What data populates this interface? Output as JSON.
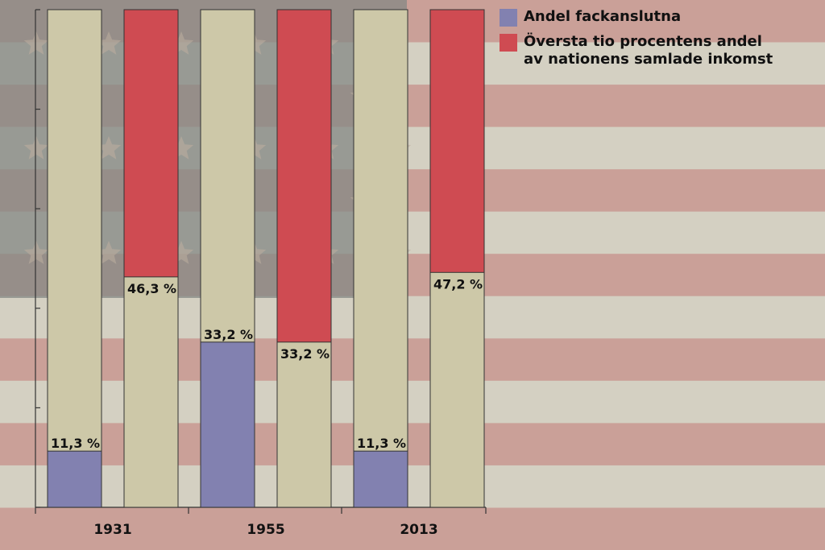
{
  "chart_data": {
    "type": "bar",
    "title": "",
    "xlabel": "",
    "ylabel": "",
    "ylim": [
      0,
      100
    ],
    "categories": [
      "1931",
      "1955",
      "2013"
    ],
    "series": [
      {
        "name": "Andel fackanslutna",
        "values": [
          11.3,
          33.2,
          11.3
        ],
        "labels": [
          "11,3 %",
          "33,2 %",
          "11,3 %"
        ],
        "color": "#8281b0"
      },
      {
        "name": "Översta tio procentens andel\nav nationens samlade inkomst",
        "values": [
          46.3,
          33.2,
          47.2
        ],
        "labels": [
          "46,3 %",
          "33,2 %",
          "47,2 %"
        ],
        "color": "#cf4b52"
      }
    ],
    "track_color": "#cdc8a8",
    "legend_position": "top-right"
  }
}
